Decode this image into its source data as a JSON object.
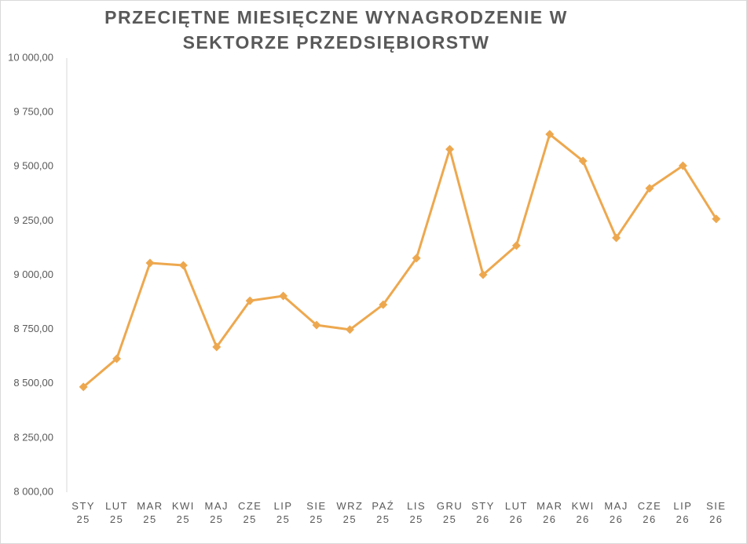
{
  "chart_data": {
    "type": "line",
    "title": "PRZECIĘTNE MIESIĘCZNE WYNAGRODZENIE W SEKTORZE PRZEDSIĘBIORSTW",
    "categories": [
      "STY 25",
      "LUT 25",
      "MAR 25",
      "KWI 25",
      "MAJ 25",
      "CZE 25",
      "LIP 25",
      "SIE 25",
      "WRZ 25",
      "PAŹ 25",
      "LIS 25",
      "GRU 25",
      "STY 26",
      "LUT 26",
      "MAR 26",
      "KWI 26",
      "MAJ 26",
      "CZE 26",
      "LIP 26",
      "SIE 26"
    ],
    "values": [
      8485,
      8615,
      9056,
      9045,
      8669,
      8882,
      8904,
      8770,
      8749,
      8864,
      9078,
      9580,
      9002,
      9136,
      9649,
      9526,
      9172,
      9400,
      9504,
      9259
    ],
    "color": "#eda84f",
    "ylim": [
      8000,
      10000
    ],
    "yticks": [
      {
        "value": 8000,
        "label": "8 000,00"
      },
      {
        "value": 8250,
        "label": "8 250,00"
      },
      {
        "value": 8500,
        "label": "8 500,00"
      },
      {
        "value": 8750,
        "label": "8 750,00"
      },
      {
        "value": 9000,
        "label": "9 000,00"
      },
      {
        "value": 9250,
        "label": "9 250,00"
      },
      {
        "value": 9500,
        "label": "9 500,00"
      },
      {
        "value": 9750,
        "label": "9 750,00"
      },
      {
        "value": 10000,
        "label": "10 000,00"
      }
    ],
    "grid": false
  }
}
